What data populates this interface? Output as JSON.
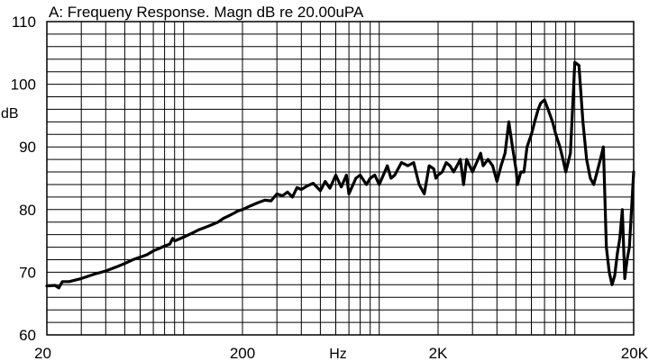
{
  "chart_data": {
    "type": "line",
    "title": "A: Frequeny Response. Magn dB re 20.00uPA",
    "ylabel": "dB",
    "xlabel": "Hz",
    "x_scale": "log",
    "xlim": [
      20,
      20000
    ],
    "ylim": [
      60,
      110
    ],
    "grid": true,
    "x_tick_labels": [
      {
        "value": 20,
        "label": "20"
      },
      {
        "value": 200,
        "label": "200"
      },
      {
        "value": 2000,
        "label": "2K"
      },
      {
        "value": 20000,
        "label": "20K"
      }
    ],
    "y_tick_labels": [
      {
        "value": 60,
        "label": "60"
      },
      {
        "value": 70,
        "label": "70"
      },
      {
        "value": 80,
        "label": "80"
      },
      {
        "value": 90,
        "label": "90"
      },
      {
        "value": 100,
        "label": "100"
      },
      {
        "value": 110,
        "label": "110"
      }
    ],
    "series": [
      {
        "color": "#000000",
        "x": [
          20,
          22,
          23,
          24,
          26,
          30,
          35,
          40,
          45,
          50,
          55,
          60,
          65,
          70,
          75,
          80,
          85,
          88,
          90,
          95,
          100,
          110,
          120,
          130,
          140,
          150,
          160,
          170,
          180,
          190,
          200,
          220,
          240,
          260,
          280,
          300,
          320,
          340,
          360,
          380,
          400,
          430,
          460,
          500,
          530,
          560,
          600,
          640,
          680,
          700,
          760,
          800,
          860,
          900,
          950,
          1000,
          1050,
          1100,
          1150,
          1200,
          1300,
          1400,
          1500,
          1600,
          1700,
          1800,
          1900,
          1950,
          2000,
          2100,
          2200,
          2300,
          2400,
          2500,
          2600,
          2700,
          2800,
          3000,
          3200,
          3300,
          3400,
          3500,
          3600,
          3800,
          4000,
          4200,
          4400,
          4600,
          4800,
          5000,
          5100,
          5300,
          5500,
          5700,
          6000,
          6300,
          6500,
          6700,
          7000,
          7300,
          7700,
          8000,
          8400,
          8700,
          9000,
          9500,
          10000,
          10500,
          11000,
          11500,
          12000,
          12500,
          13000,
          13500,
          14000,
          14500,
          15000,
          15500,
          16000,
          16500,
          17000,
          17500,
          18000,
          18500,
          19000,
          20000
        ],
        "y": [
          67.8,
          67.9,
          67.5,
          68.5,
          68.5,
          69.0,
          69.7,
          70.2,
          70.8,
          71.4,
          72.0,
          72.4,
          72.8,
          73.4,
          73.8,
          74.2,
          74.5,
          75.4,
          75.0,
          75.3,
          75.6,
          76.2,
          76.8,
          77.2,
          77.6,
          78.0,
          78.6,
          79.0,
          79.4,
          79.8,
          80.0,
          80.6,
          81.1,
          81.5,
          81.4,
          82.5,
          82.2,
          82.8,
          82.0,
          83.5,
          83.2,
          83.8,
          84.2,
          83.0,
          84.5,
          83.4,
          85.5,
          83.6,
          85.5,
          82.5,
          85.0,
          85.5,
          84.0,
          85.0,
          85.5,
          84.0,
          85.5,
          87.0,
          85.0,
          85.5,
          87.5,
          87.0,
          87.5,
          84.0,
          82.5,
          87.0,
          86.5,
          85.0,
          85.5,
          86.0,
          87.5,
          87.0,
          86.0,
          87.0,
          88.0,
          84.0,
          88.0,
          86.0,
          88.0,
          89.0,
          87.0,
          87.5,
          88.0,
          87.0,
          84.5,
          87.0,
          89.0,
          94.0,
          90.0,
          86.5,
          84.0,
          86.0,
          86.0,
          90.0,
          92.0,
          94.5,
          96.0,
          97.0,
          97.5,
          96.0,
          94.0,
          92.0,
          90.0,
          88.0,
          86.0,
          89.0,
          103.5,
          103.0,
          94.0,
          88.0,
          85.0,
          84.0,
          86.0,
          88.0,
          90.0,
          74.0,
          70.0,
          68.0,
          69.5,
          73.0,
          75.5,
          80.0,
          69.0,
          72.0,
          74.0,
          86.0
        ],
        "note_unused": ""
      }
    ]
  }
}
